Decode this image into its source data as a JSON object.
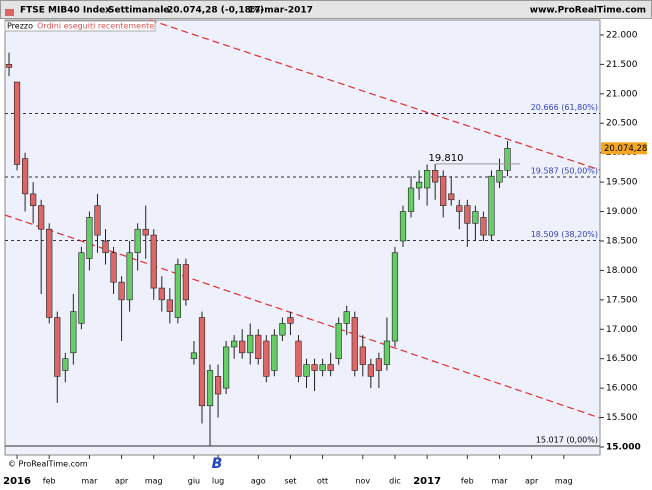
{
  "header": {
    "instrument": "FTSE MIB40 Index",
    "period": "Settimanale",
    "quote": "20.074,28 (-0,18%)",
    "date": "17-mar-2017",
    "site": "www.ProRealTime.com"
  },
  "chart_data": {
    "type": "candlestick",
    "legend": [
      "Prezzo",
      "Ordini eseguiti recentemente"
    ],
    "watermark": "© ProRealTime.com",
    "colors": {
      "up": "#66cc66",
      "down": "#dd6666"
    },
    "categories": [
      null,
      "2016",
      null,
      null,
      null,
      "feb",
      null,
      null,
      null,
      null,
      "mar",
      null,
      null,
      null,
      "apr",
      null,
      null,
      null,
      "mag",
      null,
      null,
      null,
      null,
      "giu",
      null,
      null,
      "lug",
      null,
      null,
      null,
      null,
      "ago",
      null,
      null,
      null,
      "set",
      null,
      null,
      null,
      "ott",
      null,
      null,
      null,
      null,
      "nov",
      null,
      null,
      null,
      "dic",
      null,
      null,
      null,
      "2017",
      null,
      null,
      null,
      null,
      "feb",
      null,
      null,
      null,
      "mar",
      null,
      null,
      null,
      "apr",
      null,
      null,
      null,
      "mag",
      null,
      null,
      null,
      null
    ],
    "open": [
      21500,
      21200,
      19900,
      19300,
      19100,
      18700,
      17200,
      16300,
      16600,
      17100,
      18200,
      19100,
      18500,
      18300,
      17800,
      17500,
      18300,
      18700,
      18600,
      17700,
      17500,
      17200,
      18100,
      16500,
      17200,
      15700,
      16200,
      16000,
      16700,
      16800,
      16600,
      16900,
      16800,
      16300,
      16900,
      17200,
      16800,
      16200,
      16400,
      16300,
      16400,
      16500,
      17100,
      17200,
      16700,
      16400,
      16500,
      16400,
      16800,
      18500,
      19000,
      19400,
      19400,
      19700,
      19600,
      19300,
      19100,
      19100,
      18800,
      18900,
      18600,
      19500,
      19700,
      null,
      null,
      null,
      null,
      null,
      null,
      null,
      null,
      null,
      null,
      null
    ],
    "high": [
      21700,
      21200,
      20000,
      19500,
      19200,
      18800,
      17300,
      16600,
      17600,
      18400,
      19000,
      19300,
      18700,
      18400,
      17900,
      18500,
      18800,
      19100,
      18700,
      17900,
      17700,
      18200,
      18200,
      16800,
      17300,
      16400,
      16400,
      16800,
      16900,
      17000,
      17100,
      17000,
      16900,
      17000,
      17200,
      17300,
      16900,
      16500,
      16500,
      16500,
      16600,
      17200,
      17400,
      17300,
      16900,
      16500,
      16600,
      17200,
      18400,
      19100,
      19600,
      19700,
      19800,
      19810,
      19700,
      19600,
      19200,
      19200,
      19100,
      19000,
      19700,
      19900,
      20200,
      null,
      null,
      null,
      null,
      null,
      null,
      null,
      null,
      null,
      null,
      null
    ],
    "low": [
      21300,
      19700,
      19000,
      18800,
      17600,
      17100,
      15750,
      16100,
      16400,
      17000,
      18000,
      18300,
      18100,
      17600,
      16800,
      17300,
      18000,
      18200,
      17500,
      17300,
      17100,
      17100,
      17400,
      16400,
      15400,
      15017,
      15500,
      15900,
      16500,
      16500,
      16400,
      16400,
      16100,
      16200,
      16800,
      16900,
      16100,
      16000,
      15950,
      16200,
      16200,
      16400,
      16900,
      16200,
      16200,
      16000,
      16000,
      16300,
      16700,
      18400,
      18900,
      19200,
      19100,
      19200,
      18900,
      19100,
      18700,
      18400,
      18500,
      18500,
      18500,
      19400,
      19600,
      null,
      null,
      null,
      null,
      null,
      null,
      null,
      null,
      null,
      null,
      null
    ],
    "close": [
      21450,
      19800,
      19300,
      19100,
      18700,
      17200,
      16200,
      16500,
      17300,
      18300,
      18900,
      18600,
      18300,
      17800,
      17500,
      18300,
      18700,
      18600,
      17700,
      17500,
      17300,
      18100,
      17500,
      16600,
      15700,
      16300,
      15900,
      16700,
      16800,
      16600,
      16900,
      16500,
      16200,
      16900,
      17100,
      17100,
      16200,
      16400,
      16300,
      16400,
      16300,
      17100,
      17300,
      16300,
      16400,
      16200,
      16300,
      16800,
      18300,
      19000,
      19400,
      19500,
      19700,
      19500,
      19100,
      19200,
      19000,
      18800,
      19000,
      18600,
      19600,
      19700,
      20074.28,
      null,
      null,
      null,
      null,
      null,
      null,
      null,
      null,
      null,
      null,
      null
    ],
    "ylim": [
      14864,
      22254
    ],
    "yticks": [
      {
        "value": 15000,
        "label": "15.000"
      },
      {
        "value": 15500,
        "label": "15.500"
      },
      {
        "value": 16000,
        "label": "16.000"
      },
      {
        "value": 16500,
        "label": "16.500"
      },
      {
        "value": 17000,
        "label": "17.000"
      },
      {
        "value": 17500,
        "label": "17.500"
      },
      {
        "value": 18000,
        "label": "18.000"
      },
      {
        "value": 18500,
        "label": "18.500"
      },
      {
        "value": 19000,
        "label": "19.000"
      },
      {
        "value": 19500,
        "label": "19.500"
      },
      {
        "value": 20000,
        "label": "20.000"
      },
      {
        "value": 20500,
        "label": "20.500"
      },
      {
        "value": 21000,
        "label": "21.000"
      },
      {
        "value": 21500,
        "label": "21.500"
      },
      {
        "value": 22000,
        "label": "22.000"
      }
    ],
    "levels": [
      {
        "value": 20666,
        "label": "20.666 (61,80%)"
      },
      {
        "value": 19587,
        "label": "19.587 (50,00%)"
      },
      {
        "value": 18509,
        "label": "18.509 (38,20%)"
      },
      {
        "value": 15017,
        "label": "15.017 (0,00%)"
      }
    ],
    "high_note": {
      "value": 19810,
      "label": "19.810"
    },
    "last_price": {
      "value": 20074.28,
      "label": "20.074,28"
    },
    "marker": "B"
  }
}
